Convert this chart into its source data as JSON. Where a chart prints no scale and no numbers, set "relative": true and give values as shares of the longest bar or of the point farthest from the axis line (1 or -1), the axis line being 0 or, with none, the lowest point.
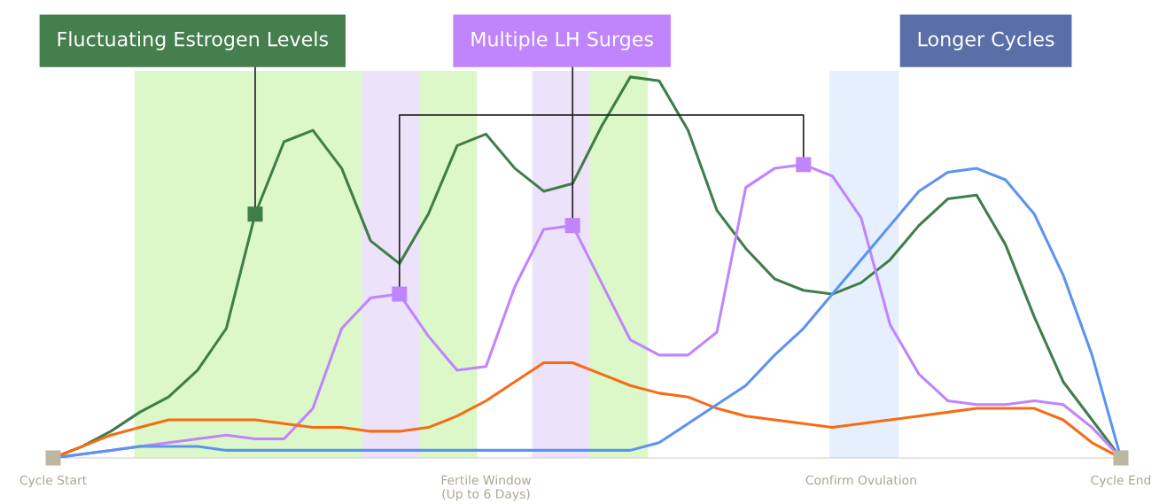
{
  "chart_data": {
    "type": "line",
    "relative": true,
    "categories": [
      "Cycle Start",
      null,
      null,
      null,
      null,
      null,
      null,
      null,
      null,
      null,
      null,
      null,
      null,
      null,
      null,
      "Fertile Window\n(Up to 6 Days)",
      null,
      null,
      null,
      null,
      null,
      null,
      null,
      null,
      null,
      null,
      null,
      null,
      "Confirm Ovulation",
      null,
      null,
      null,
      null,
      null,
      null,
      null,
      null,
      "Cycle End"
    ],
    "line_style": "solid",
    "marker": "none",
    "series": [
      {
        "color": "#3f7d4a",
        "values": [
          0,
          0.03,
          0.07,
          0.12,
          0.16,
          0.23,
          0.34,
          0.64,
          0.83,
          0.86,
          0.76,
          0.57,
          0.51,
          0.64,
          0.82,
          0.85,
          0.76,
          0.7,
          0.72,
          0.87,
          1,
          0.99,
          0.86,
          0.65,
          0.55,
          0.47,
          0.44,
          0.43,
          0.46,
          0.52,
          0.61,
          0.68,
          0.69,
          0.56,
          0.37,
          0.2,
          0.1,
          0
        ]
      },
      {
        "color": "#c084fc",
        "values": [
          0,
          0.01,
          0.02,
          0.03,
          0.04,
          0.05,
          0.06,
          0.05,
          0.05,
          0.13,
          0.34,
          0.42,
          0.43,
          0.32,
          0.23,
          0.24,
          0.45,
          0.6,
          0.61,
          0.46,
          0.31,
          0.27,
          0.27,
          0.33,
          0.71,
          0.76,
          0.77,
          0.74,
          0.63,
          0.35,
          0.22,
          0.15,
          0.14,
          0.14,
          0.15,
          0.14,
          0.08,
          0
        ]
      },
      {
        "color": "#f76b15",
        "values": [
          0,
          0.03,
          0.06,
          0.08,
          0.1,
          0.1,
          0.1,
          0.1,
          0.09,
          0.08,
          0.08,
          0.07,
          0.07,
          0.08,
          0.11,
          0.15,
          0.2,
          0.25,
          0.25,
          0.22,
          0.19,
          0.17,
          0.16,
          0.13,
          0.11,
          0.1,
          0.09,
          0.08,
          0.09,
          0.1,
          0.11,
          0.12,
          0.13,
          0.13,
          0.13,
          0.1,
          0.04,
          0
        ]
      },
      {
        "color": "#5b93f0",
        "values": [
          0,
          0.01,
          0.02,
          0.03,
          0.03,
          0.03,
          0.02,
          0.02,
          0.02,
          0.02,
          0.02,
          0.02,
          0.02,
          0.02,
          0.02,
          0.02,
          0.02,
          0.02,
          0.02,
          0.02,
          0.02,
          0.04,
          0.09,
          0.14,
          0.19,
          0.27,
          0.34,
          0.43,
          0.52,
          0.61,
          0.7,
          0.75,
          0.76,
          0.73,
          0.64,
          0.48,
          0.27,
          0
        ]
      },
      {
        "type": "scatter",
        "marker": "square",
        "color": "#3f7d4a",
        "values": [
          null,
          null,
          null,
          null,
          null,
          null,
          null,
          0.64,
          null,
          null,
          null,
          null,
          null,
          null,
          null,
          null,
          null,
          null,
          null,
          null,
          null,
          null,
          null,
          null,
          null,
          null,
          null,
          null,
          null,
          null,
          null,
          null,
          null,
          null,
          null,
          null,
          null,
          null
        ]
      },
      {
        "type": "scatter",
        "marker": "square",
        "color": "#c084fc",
        "values": [
          null,
          null,
          null,
          null,
          null,
          null,
          null,
          null,
          null,
          null,
          null,
          null,
          0.43,
          null,
          null,
          null,
          null,
          null,
          0.61,
          null,
          null,
          null,
          null,
          null,
          null,
          null,
          0.77,
          null,
          null,
          null,
          null,
          null,
          null,
          null,
          null,
          null,
          null,
          null
        ]
      },
      {
        "type": "scatter",
        "marker": "square",
        "color": "#bdb6a0",
        "values": [
          0,
          null,
          null,
          null,
          null,
          null,
          null,
          null,
          null,
          null,
          null,
          null,
          null,
          null,
          null,
          null,
          null,
          null,
          null,
          null,
          null,
          null,
          null,
          null,
          null,
          null,
          null,
          null,
          null,
          null,
          null,
          null,
          null,
          null,
          null,
          null,
          null,
          0
        ]
      }
    ],
    "annotations": [
      "Fluctuating Estrogen Levels",
      "Multiple LH Surges",
      "Longer Cycles"
    ]
  }
}
